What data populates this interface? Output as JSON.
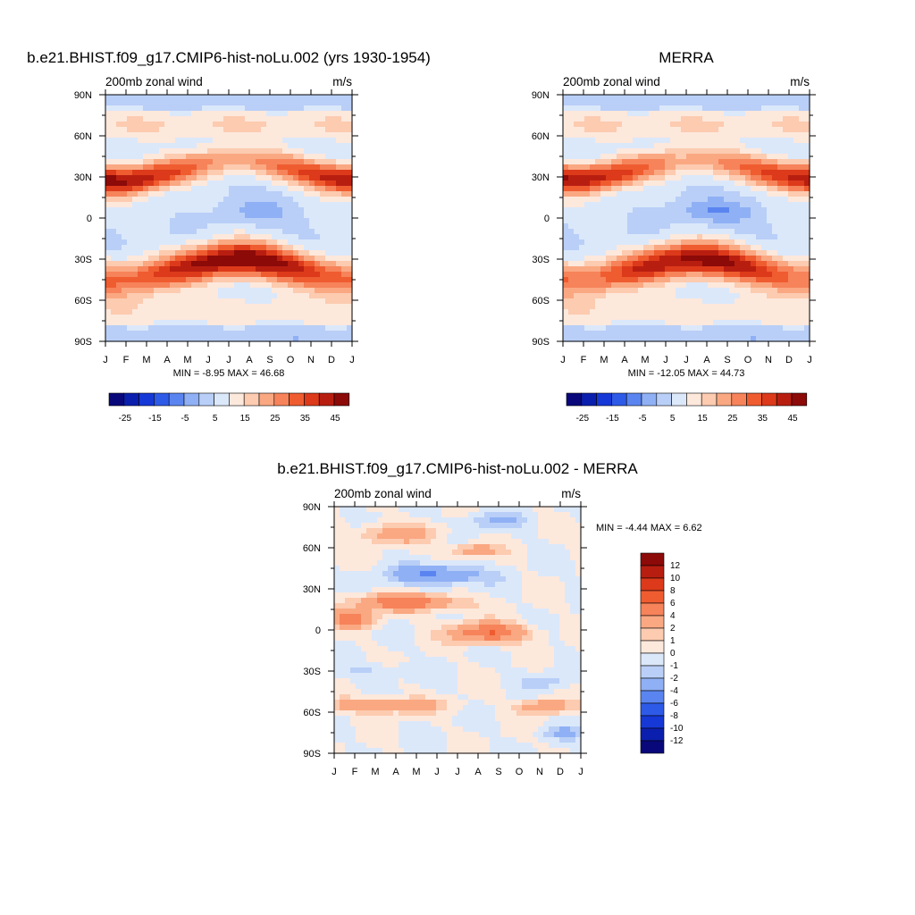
{
  "colors": {
    "main_scale": [
      "#08087a",
      "#0b1fae",
      "#1638d6",
      "#2e5ae8",
      "#5a85f0",
      "#8fb0f4",
      "#b9cff7",
      "#dbe8fa",
      "#fde8dc",
      "#fccbb0",
      "#faa882",
      "#f6835a",
      "#ef5c30",
      "#dc3a1a",
      "#b81e10",
      "#8c0a08"
    ],
    "diff_scale": [
      "#08087a",
      "#0b1fae",
      "#1638d6",
      "#2e5ae8",
      "#5a85f0",
      "#8fb0f4",
      "#b9cff7",
      "#dbe8fa",
      "#fde8dc",
      "#fccbb0",
      "#faa882",
      "#f6835a",
      "#ef5c30",
      "#dc3a1a",
      "#b81e10",
      "#8c0a08"
    ]
  },
  "chart_data": [
    {
      "type": "heatmap",
      "title": "b.e21.BHIST.f09_g17.CMIP6-hist-noLu.002 (yrs 1930-1954)",
      "left_label": "200mb zonal wind",
      "right_label": "m/s",
      "x_tick_labels": [
        "J",
        "F",
        "M",
        "A",
        "M",
        "J",
        "J",
        "A",
        "S",
        "O",
        "N",
        "D",
        "J"
      ],
      "y_tick_labels": [
        "90N",
        "60N",
        "30N",
        "0",
        "30S",
        "60S",
        "90S"
      ],
      "stats": "MIN =  -8.95 MAX =  46.68",
      "min": -8.95,
      "max": 46.68,
      "colorbar_levels": [
        -30,
        -25,
        -20,
        -15,
        -10,
        -5,
        0,
        5,
        10,
        15,
        20,
        25,
        30,
        35,
        40,
        45
      ],
      "colorbar_labels": [
        "-25",
        "-15",
        "-5",
        "5",
        "15",
        "25",
        "35",
        "45"
      ],
      "jets": {
        "nh": {
          "lat_winter": 27,
          "lat_summer": 42,
          "peak_winter": 42,
          "peak_summer": 18
        },
        "sh": {
          "lat_winter": -30,
          "lat_summer": -45,
          "peak_winter": 46,
          "peak_summer": 26
        },
        "eq_easterly": {
          "lat": 5,
          "peak": -8.5
        }
      }
    },
    {
      "type": "heatmap",
      "title": "MERRA",
      "left_label": "200mb zonal wind",
      "right_label": "m/s",
      "x_tick_labels": [
        "J",
        "F",
        "M",
        "A",
        "M",
        "J",
        "J",
        "A",
        "S",
        "O",
        "N",
        "D",
        "J"
      ],
      "y_tick_labels": [
        "90N",
        "60N",
        "30N",
        "0",
        "30S",
        "60S",
        "90S"
      ],
      "stats": "MIN = -12.05 MAX =  44.73",
      "min": -12.05,
      "max": 44.73,
      "colorbar_levels": [
        -30,
        -25,
        -20,
        -15,
        -10,
        -5,
        0,
        5,
        10,
        15,
        20,
        25,
        30,
        35,
        40,
        45
      ],
      "colorbar_labels": [
        "-25",
        "-15",
        "-5",
        "5",
        "15",
        "25",
        "35",
        "45"
      ],
      "jets": {
        "nh": {
          "lat_winter": 28,
          "lat_summer": 42,
          "peak_winter": 40,
          "peak_summer": 17
        },
        "sh": {
          "lat_winter": -30,
          "lat_summer": -45,
          "peak_winter": 43,
          "peak_summer": 24
        },
        "eq_easterly": {
          "lat": 5,
          "peak": -12
        }
      }
    },
    {
      "type": "heatmap",
      "title": "b.e21.BHIST.f09_g17.CMIP6-hist-noLu.002 - MERRA",
      "left_label": "200mb zonal wind",
      "right_label": "m/s",
      "x_tick_labels": [
        "J",
        "F",
        "M",
        "A",
        "M",
        "J",
        "J",
        "A",
        "S",
        "O",
        "N",
        "D",
        "J"
      ],
      "y_tick_labels": [
        "90N",
        "60N",
        "30N",
        "0",
        "30S",
        "60S",
        "90S"
      ],
      "stats": "MIN =  -4.44 MAX =   6.62",
      "min": -4.44,
      "max": 6.62,
      "colorbar_levels": [
        -12,
        -10,
        -8,
        -6,
        -4,
        -2,
        -1,
        0,
        1,
        2,
        4,
        6,
        8,
        10,
        12
      ],
      "colorbar_labels": [
        "12",
        "10",
        "8",
        "6",
        "4",
        "2",
        "1",
        "0",
        "-1",
        "-2",
        "-4",
        "-6",
        "-8",
        "-10",
        "-12"
      ],
      "features": [
        {
          "month": 5,
          "lat": 40,
          "value": -4.4,
          "sigma_m": 2.2,
          "sigma_lat": 7
        },
        {
          "month": 3.5,
          "lat": 20,
          "value": 5.5,
          "sigma_m": 2.5,
          "sigma_lat": 6
        },
        {
          "month": 0.8,
          "lat": 8,
          "value": 5,
          "sigma_m": 1.2,
          "sigma_lat": 6
        },
        {
          "month": 7.5,
          "lat": -2,
          "value": 6,
          "sigma_m": 1.8,
          "sigma_lat": 7
        },
        {
          "month": 2.5,
          "lat": -55,
          "value": 4.5,
          "sigma_m": 2.5,
          "sigma_lat": 5
        },
        {
          "month": 10.2,
          "lat": -56,
          "value": 4,
          "sigma_m": 1.2,
          "sigma_lat": 5
        },
        {
          "month": 3,
          "lat": 70,
          "value": 3,
          "sigma_m": 2,
          "sigma_lat": 7
        },
        {
          "month": 6.8,
          "lat": 58,
          "value": 3,
          "sigma_m": 1.2,
          "sigma_lat": 5
        },
        {
          "month": 7.8,
          "lat": 80,
          "value": -2,
          "sigma_m": 1.6,
          "sigma_lat": 6
        },
        {
          "month": 10.2,
          "lat": -37,
          "value": -1.5,
          "sigma_m": 1.2,
          "sigma_lat": 6
        },
        {
          "month": 2,
          "lat": -30,
          "value": -1.2,
          "sigma_m": 1.8,
          "sigma_lat": 6
        },
        {
          "month": 11.2,
          "lat": -75,
          "value": -2,
          "sigma_m": 1.2,
          "sigma_lat": 5
        }
      ]
    }
  ]
}
